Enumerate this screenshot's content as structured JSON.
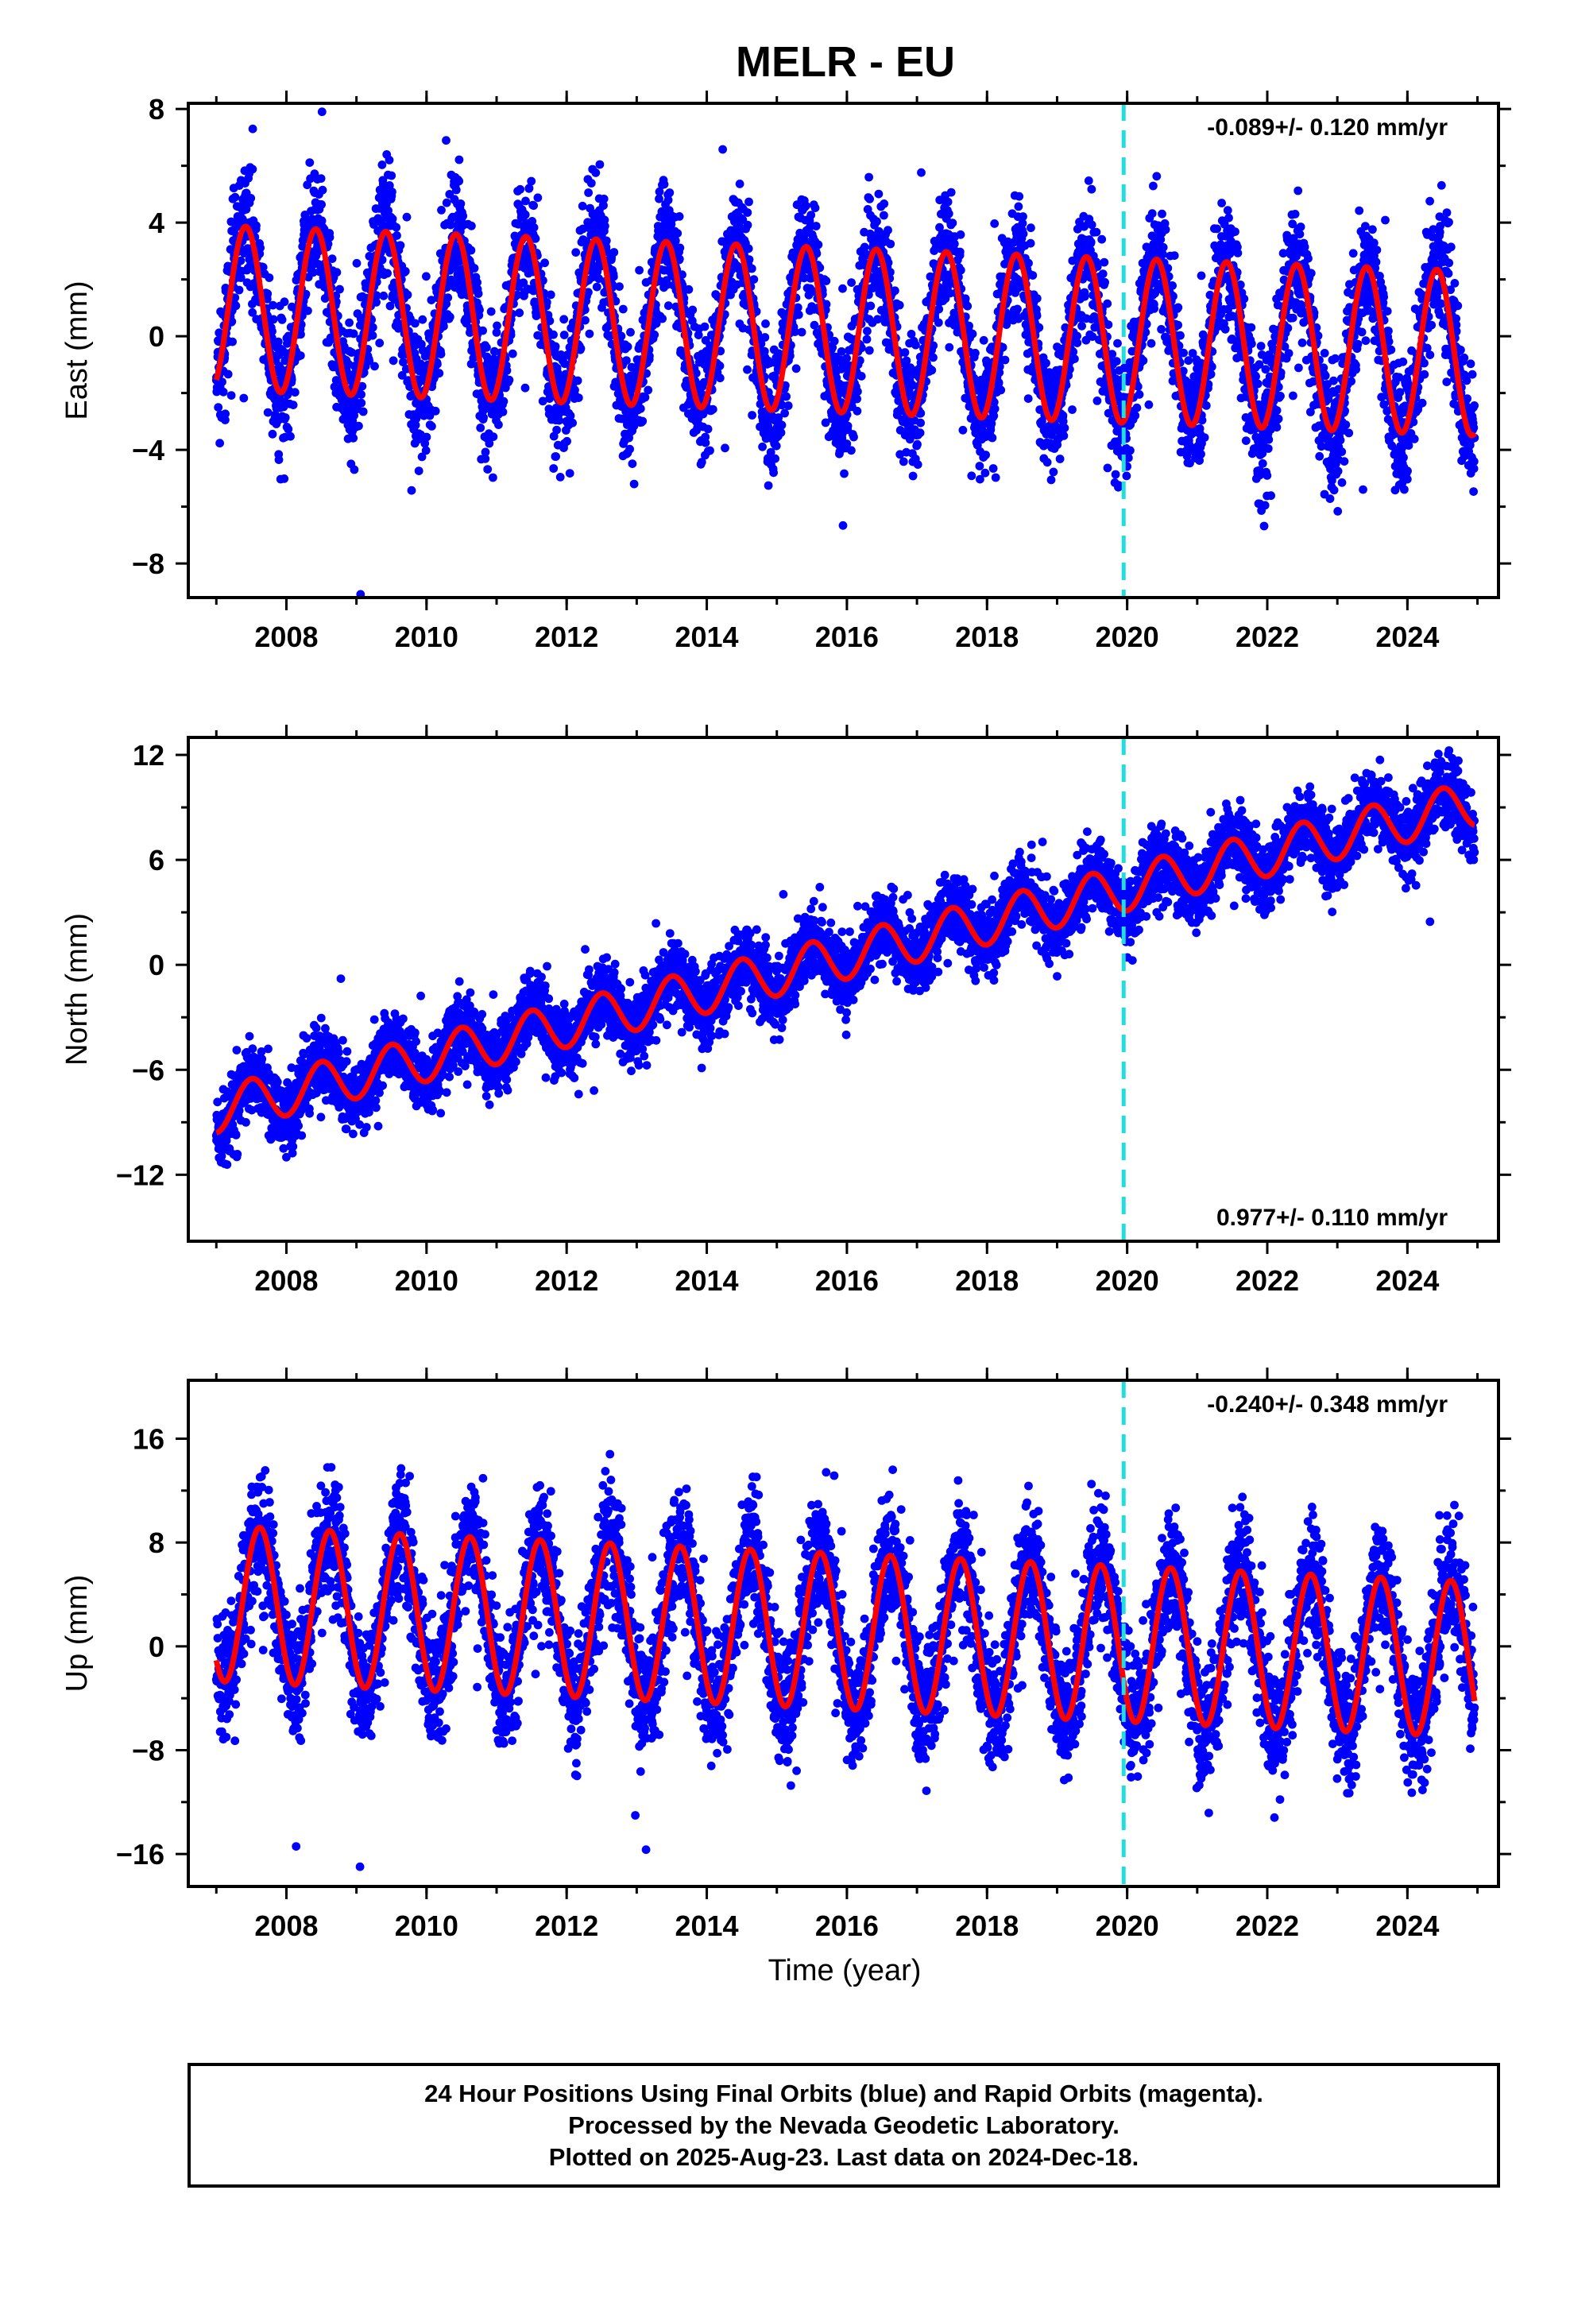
{
  "title": "MELR - EU",
  "xlabel": "Time (year)",
  "colors": {
    "final_orbits": "#0000ff",
    "model": "#ff0000",
    "equipment_change": "#22dddd",
    "frame": "#000000"
  },
  "chart_data": [
    {
      "type": "scatter",
      "name": "east",
      "ylabel": "East (mm)",
      "rate_text": "-0.089+/- 0.120 mm/yr",
      "rate_position": "top-right",
      "xlim": [
        2006.6,
        2025.3
      ],
      "ylim": [
        -9.2,
        8.2
      ],
      "x_ticks": [
        2008,
        2010,
        2012,
        2014,
        2016,
        2018,
        2020,
        2022,
        2024
      ],
      "x_tick_labels": [
        "2008",
        "2010",
        "2012",
        "2014",
        "2016",
        "2018",
        "2020",
        "2022",
        "2024"
      ],
      "y_ticks": [
        -8,
        -4,
        0,
        4,
        8
      ],
      "y_tick_labels": [
        "−8",
        "−4",
        "0",
        "4",
        "8"
      ],
      "equipment_change_x": 2019.95,
      "data_start": 2007.0,
      "data_end": 2024.96,
      "model": {
        "trend_mm_per_yr": -0.089,
        "offset_mm_at_start": 1.0,
        "annual_amplitude_mm": 2.9,
        "annual_peak_year_fraction": 0.42,
        "amplitude_change_per_yr": -0.0,
        "scatter_sd_mm": 1.1
      },
      "series": [
        {
          "name": "24 Hour Positions (final orbits)",
          "color": "#0000ff"
        },
        {
          "name": "model fit",
          "color": "#ff0000"
        }
      ]
    },
    {
      "type": "scatter",
      "name": "north",
      "ylabel": "North (mm)",
      "rate_text": "0.977+/- 0.110 mm/yr",
      "rate_position": "bottom-right",
      "xlim": [
        2006.6,
        2025.3
      ],
      "ylim": [
        -15.8,
        13.0
      ],
      "x_ticks": [
        2008,
        2010,
        2012,
        2014,
        2016,
        2018,
        2020,
        2022,
        2024
      ],
      "x_tick_labels": [
        "2008",
        "2010",
        "2012",
        "2014",
        "2016",
        "2018",
        "2020",
        "2022",
        "2024"
      ],
      "y_ticks": [
        -12,
        -6,
        0,
        6,
        12
      ],
      "y_tick_labels": [
        "−12",
        "−6",
        "0",
        "6",
        "12"
      ],
      "equipment_change_x": 2019.95,
      "data_start": 2007.0,
      "data_end": 2024.96,
      "model": {
        "trend_mm_per_yr": 0.977,
        "offset_mm_at_start": -8.3,
        "annual_amplitude_mm": 1.3,
        "annual_peak_year_fraction": 0.5,
        "amplitude_change_per_yr": 0.0,
        "scatter_sd_mm": 1.0
      },
      "series": [
        {
          "name": "24 Hour Positions (final orbits)",
          "color": "#0000ff"
        },
        {
          "name": "model fit",
          "color": "#ff0000"
        }
      ]
    },
    {
      "type": "scatter",
      "name": "up",
      "ylabel": "Up (mm)",
      "rate_text": "-0.240+/- 0.348 mm/yr",
      "rate_position": "top-right",
      "xlim": [
        2006.6,
        2025.3
      ],
      "ylim": [
        -18.5,
        20.5
      ],
      "x_ticks": [
        2008,
        2010,
        2012,
        2014,
        2016,
        2018,
        2020,
        2022,
        2024
      ],
      "x_tick_labels": [
        "2008",
        "2010",
        "2012",
        "2014",
        "2016",
        "2018",
        "2020",
        "2022",
        "2024"
      ],
      "y_ticks": [
        -16,
        -8,
        0,
        8,
        16
      ],
      "y_tick_labels": [
        "−16",
        "−8",
        "0",
        "8",
        "16"
      ],
      "equipment_change_x": 2019.95,
      "data_start": 2007.0,
      "data_end": 2024.96,
      "model": {
        "trend_mm_per_yr": -0.24,
        "offset_mm_at_start": 3.3,
        "annual_amplitude_mm": 6.0,
        "annual_peak_year_fraction": 0.62,
        "amplitude_change_per_yr": 0.0,
        "scatter_sd_mm": 2.4
      },
      "series": [
        {
          "name": "24 Hour Positions (final orbits)",
          "color": "#0000ff"
        },
        {
          "name": "model fit",
          "color": "#ff0000"
        }
      ]
    }
  ],
  "footer": {
    "line1": "24 Hour Positions Using Final Orbits (blue) and Rapid Orbits (magenta).",
    "line2": "Processed by the Nevada Geodetic Laboratory.",
    "line3": "Plotted on 2025-Aug-23. Last data on 2024-Dec-18."
  }
}
